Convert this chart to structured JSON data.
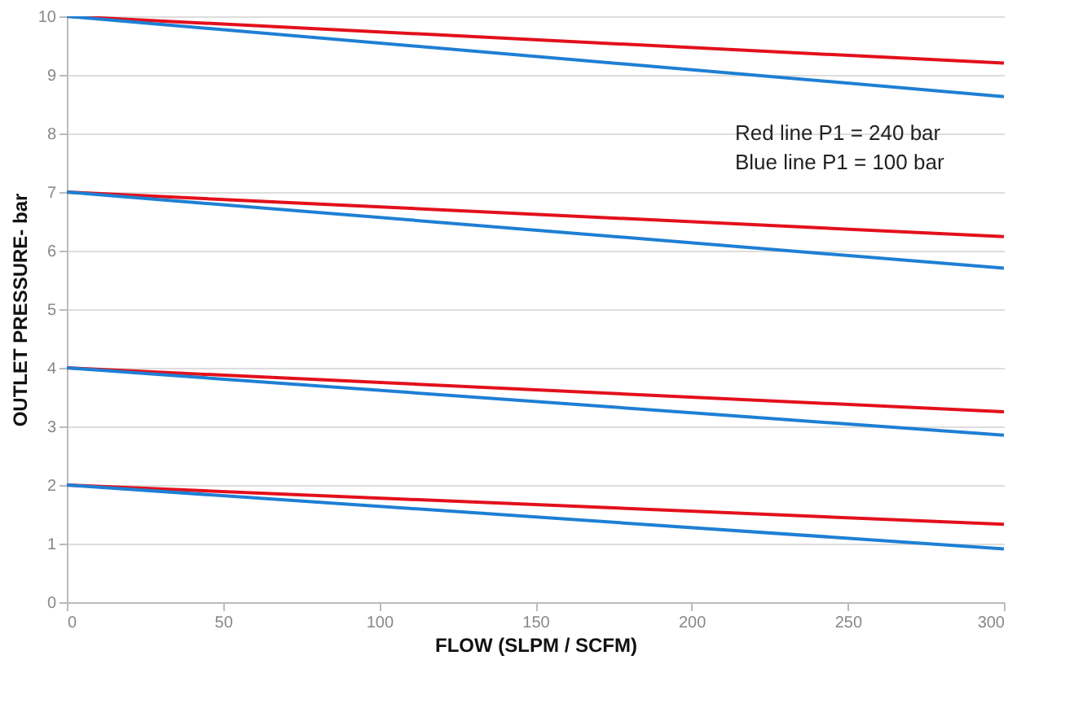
{
  "chart_data": {
    "type": "line",
    "xlabel": "FLOW (SLPM /  SCFM)",
    "ylabel": "OUTLET PRESSURE- bar",
    "xlim": [
      0,
      300
    ],
    "xticks": [
      0,
      50,
      100,
      150,
      200,
      250,
      300
    ],
    "ylim": [
      0,
      10
    ],
    "yticks": [
      0,
      1,
      2,
      3,
      4,
      5,
      6,
      7,
      8,
      9,
      10
    ],
    "grid": "y",
    "marker": "none",
    "line_style": "solid",
    "x": [
      0,
      300
    ],
    "series": [
      {
        "color": "#e3101c",
        "values": [
          10,
          9.2
        ]
      },
      {
        "color": "#1e7fd4",
        "values": [
          10,
          8.63
        ]
      },
      {
        "color": "#e3101c",
        "values": [
          7,
          6.24
        ]
      },
      {
        "color": "#1e7fd4",
        "values": [
          7,
          5.7
        ]
      },
      {
        "color": "#e3101c",
        "values": [
          4,
          3.25
        ]
      },
      {
        "color": "#1e7fd4",
        "values": [
          4,
          2.85
        ]
      },
      {
        "color": "#e3101c",
        "values": [
          2,
          1.33
        ]
      },
      {
        "color": "#1e7fd4",
        "values": [
          2,
          0.91
        ]
      }
    ],
    "annotations": [
      "Red line P1 = 240 bar",
      "Blue line P1 = 100 bar"
    ]
  }
}
